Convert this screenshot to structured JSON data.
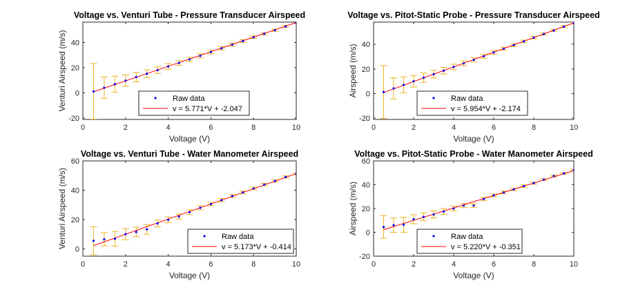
{
  "chart_data": [
    {
      "type": "scatter",
      "title": "Voltage vs. Venturi Tube - Pressure Transducer Airspeed",
      "xlabel": "Voltage (V)",
      "ylabel": "Venturi Airspeed (m/s)",
      "xlim": [
        0,
        10
      ],
      "ylim": [
        -21,
        56
      ],
      "xticks": [
        0,
        2,
        4,
        6,
        8,
        10
      ],
      "yticks": [
        -20,
        0,
        20,
        40
      ],
      "legend": {
        "location": "bottom-center",
        "entries": [
          "Raw data",
          "v = 5.771*V + -2.047"
        ]
      },
      "colors": {
        "points": "#0000ff",
        "fit": "#ff0000",
        "errorbars": "#edb120"
      },
      "fit": {
        "slope": 5.771,
        "intercept": -2.047
      },
      "series": [
        {
          "name": "Raw data",
          "x": [
            0.5,
            1.0,
            1.5,
            2.0,
            2.5,
            3.0,
            3.5,
            4.0,
            4.5,
            5.0,
            5.5,
            6.0,
            6.5,
            7.0,
            7.5,
            8.0,
            8.5,
            9.0,
            9.5,
            10.0
          ],
          "y": [
            1.2,
            4.1,
            6.9,
            9.7,
            12.5,
            15.2,
            18.0,
            20.9,
            23.7,
            26.5,
            29.3,
            32.3,
            35.3,
            38.1,
            41.0,
            44.0,
            46.8,
            49.6,
            52.6,
            55.6
          ],
          "err": [
            22,
            8.5,
            6.3,
            4.5,
            3.7,
            3.0,
            2.6,
            2.2,
            1.9,
            1.7,
            1.6,
            1.4,
            1.3,
            1.2,
            1.1,
            1.0,
            1.0,
            0.9,
            0.9,
            0.8
          ]
        }
      ]
    },
    {
      "type": "scatter",
      "title": "Voltage vs. Pitot-Static Probe - Pressure Transducer Airspeed",
      "xlabel": "Voltage (V)",
      "ylabel": "Airspeed (m/s)",
      "xlim": [
        0,
        10
      ],
      "ylim": [
        -21,
        58
      ],
      "xticks": [
        0,
        2,
        4,
        6,
        8,
        10
      ],
      "yticks": [
        -20,
        0,
        20,
        40
      ],
      "legend": {
        "location": "bottom-center",
        "entries": [
          "Raw data",
          "v = 5.954*V + -2.174"
        ]
      },
      "colors": {
        "points": "#0000ff",
        "fit": "#ff0000",
        "errorbars": "#edb120"
      },
      "fit": {
        "slope": 5.954,
        "intercept": -2.174
      },
      "series": [
        {
          "name": "Raw data",
          "x": [
            0.5,
            1.0,
            1.5,
            2.0,
            2.5,
            3.0,
            3.5,
            4.0,
            4.5,
            5.0,
            5.5,
            6.0,
            6.5,
            7.0,
            7.5,
            8.0,
            8.5,
            9.0,
            9.5,
            10.0
          ],
          "y": [
            1.2,
            4.2,
            7.1,
            10.0,
            12.9,
            15.7,
            18.6,
            21.6,
            24.5,
            27.4,
            30.3,
            33.4,
            36.4,
            39.3,
            42.3,
            45.4,
            48.3,
            51.2,
            54.3,
            57.3
          ],
          "err": [
            21.5,
            8.5,
            6.5,
            4.7,
            3.8,
            3.1,
            2.7,
            2.3,
            2.0,
            1.8,
            1.6,
            1.5,
            1.3,
            1.2,
            1.1,
            1.0,
            1.0,
            0.9,
            0.9,
            0.8
          ]
        }
      ]
    },
    {
      "type": "scatter",
      "title": "Voltage vs. Venturi Tube - Water Manometer Airspeed",
      "xlabel": "Voltage (V)",
      "ylabel": "Venturi Airspeed (m/s)",
      "xlim": [
        0,
        10
      ],
      "ylim": [
        -5,
        60
      ],
      "xticks": [
        0,
        2,
        4,
        6,
        8,
        10
      ],
      "yticks": [
        0,
        20,
        40,
        60
      ],
      "legend": {
        "location": "bottom-right",
        "entries": [
          "Raw data",
          "v = 5.173*V + -0.414"
        ]
      },
      "colors": {
        "points": "#0000ff",
        "fit": "#ff0000",
        "errorbars": "#edb120"
      },
      "fit": {
        "slope": 5.173,
        "intercept": -0.414
      },
      "series": [
        {
          "name": "Raw data",
          "x": [
            0.5,
            1.0,
            1.5,
            2.0,
            2.5,
            3.0,
            3.5,
            4.0,
            4.5,
            5.0,
            5.5,
            6.0,
            6.5,
            7.0,
            7.5,
            8.0,
            8.5,
            9.0,
            9.5,
            10.0
          ],
          "y": [
            5.5,
            6.5,
            6.9,
            10.0,
            11.5,
            13.3,
            17.3,
            19.8,
            22.0,
            25.0,
            28.0,
            30.5,
            33.2,
            36.0,
            38.5,
            41.2,
            43.8,
            46.3,
            49.0,
            51.2
          ],
          "err": [
            9.5,
            4.5,
            5.0,
            3.8,
            3.3,
            3.3,
            2.3,
            2.0,
            1.7,
            1.6,
            1.4,
            1.2,
            1.1,
            1.0,
            1.0,
            0.9,
            0.9,
            0.8,
            0.8,
            0.7
          ]
        }
      ]
    },
    {
      "type": "scatter",
      "title": "Voltage vs. Pitot-Static Probe - Water Manometer Airspeed",
      "xlabel": "Voltage (V)",
      "ylabel": "Airspeed (m/s)",
      "xlim": [
        0,
        10
      ],
      "ylim": [
        -20,
        60
      ],
      "xticks": [
        0,
        2,
        4,
        6,
        8,
        10
      ],
      "yticks": [
        -20,
        0,
        20,
        40,
        60
      ],
      "legend": {
        "location": "bottom-right",
        "entries": [
          "Raw data",
          "v = 5.220*V + -0.351"
        ]
      },
      "colors": {
        "points": "#0000ff",
        "fit": "#ff0000",
        "errorbars": "#edb120"
      },
      "fit": {
        "slope": 5.22,
        "intercept": -0.351
      },
      "series": [
        {
          "name": "Raw data",
          "x": [
            0.5,
            1.0,
            1.5,
            2.0,
            2.5,
            3.0,
            3.5,
            4.0,
            4.5,
            5.0,
            5.5,
            6.0,
            6.5,
            7.0,
            7.5,
            8.0,
            8.5,
            9.0,
            9.5,
            10.0
          ],
          "y": [
            4.5,
            6.0,
            6.4,
            11.0,
            13.0,
            15.0,
            17.5,
            20.0,
            22.5,
            22.5,
            28.0,
            31.0,
            33.5,
            36.0,
            38.8,
            41.3,
            44.3,
            47.3,
            49.5,
            52.3
          ],
          "err": [
            9.5,
            6.0,
            6.3,
            3.8,
            3.3,
            3.0,
            2.5,
            2.0,
            1.7,
            1.5,
            1.4,
            1.2,
            1.1,
            1.0,
            1.0,
            0.9,
            0.8,
            0.8,
            0.7,
            0.7
          ]
        }
      ]
    }
  ]
}
